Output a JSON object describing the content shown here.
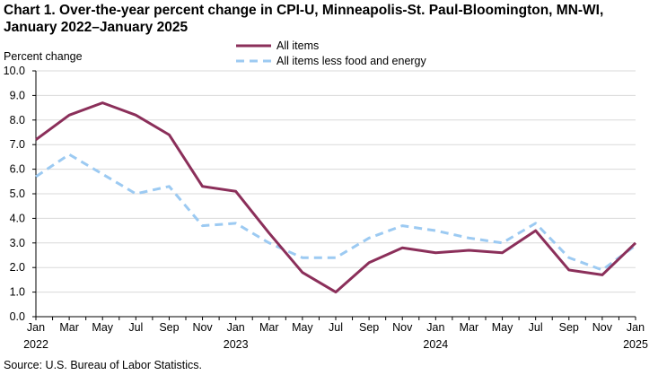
{
  "title_lines": [
    "Chart 1. Over-the-year percent change in CPI-U, Minneapolis-St. Paul-Bloomington, MN-WI,",
    "January 2022–January 2025"
  ],
  "source": "Source: U.S. Bureau of Labor Statistics.",
  "chart_data": {
    "type": "line",
    "title": "Over-the-year percent change in CPI-U, Minneapolis-St. Paul-Bloomington, MN-WI, January 2022–January 2025",
    "ylabel": "Percent change",
    "xlabel": "",
    "ylim": [
      0,
      10
    ],
    "yticks": [
      "0.0",
      "1.0",
      "2.0",
      "3.0",
      "4.0",
      "5.0",
      "6.0",
      "7.0",
      "8.0",
      "9.0",
      "10.0"
    ],
    "x": [
      "Jan 2022",
      "Mar 2022",
      "May 2022",
      "Jul 2022",
      "Sep 2022",
      "Nov 2022",
      "Jan 2023",
      "Mar 2023",
      "May 2023",
      "Jul 2023",
      "Sep 2023",
      "Nov 2023",
      "Jan 2024",
      "Mar 2024",
      "May 2024",
      "Jul 2024",
      "Sep 2024",
      "Nov 2024",
      "Jan 2025"
    ],
    "tick_labels": [
      "Jan",
      "Mar",
      "May",
      "Jul",
      "Sep",
      "Nov",
      "Jan",
      "Mar",
      "May",
      "Jul",
      "Sep",
      "Nov",
      "Jan",
      "Mar",
      "May",
      "Jul",
      "Sep",
      "Nov",
      "Jan"
    ],
    "year_labels": [
      {
        "index": 0,
        "label": "2022"
      },
      {
        "index": 6,
        "label": "2023"
      },
      {
        "index": 12,
        "label": "2024"
      },
      {
        "index": 18,
        "label": "2025"
      }
    ],
    "legend_position": "top",
    "series": [
      {
        "name": "All items",
        "color": "#8b2f5a",
        "style": "solid",
        "values": [
          7.2,
          8.2,
          8.7,
          8.2,
          7.4,
          5.3,
          5.1,
          3.4,
          1.8,
          1.0,
          2.2,
          2.8,
          2.6,
          2.7,
          2.6,
          3.5,
          1.9,
          1.7,
          3.0
        ]
      },
      {
        "name": "All items less food and energy",
        "color": "#9ccaf2",
        "style": "dashed",
        "values": [
          5.7,
          6.6,
          5.8,
          5.0,
          5.3,
          3.7,
          3.8,
          3.0,
          2.4,
          2.4,
          3.2,
          3.7,
          3.5,
          3.2,
          3.0,
          3.8,
          2.4,
          1.9,
          2.9
        ]
      }
    ]
  }
}
